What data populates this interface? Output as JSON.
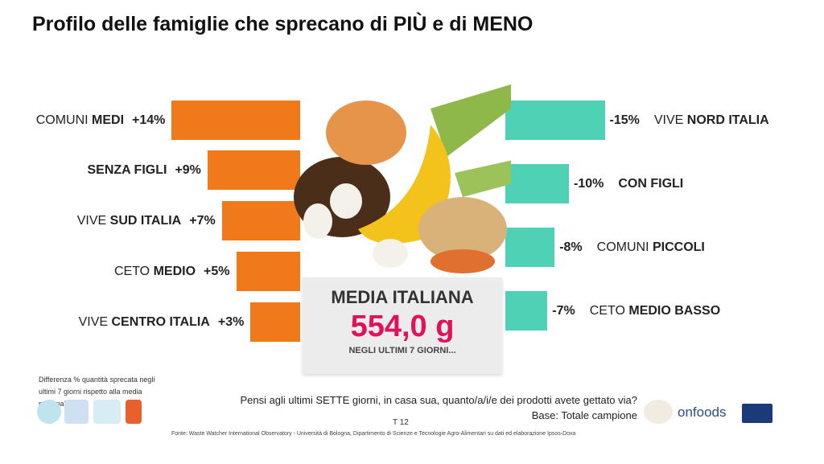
{
  "title": "Profilo delle famiglie che sprecano di PIÙ e di MENO",
  "colors": {
    "more": "#f07a1a",
    "less": "#4fd1b5",
    "accent": "#e0135a"
  },
  "chart_data": {
    "type": "bar",
    "title": "Profilo delle famiglie che sprecano di PIÙ e di MENO",
    "more": [
      {
        "pre": "COMUNI ",
        "bold": "MEDI",
        "value": 14,
        "label": "+14%"
      },
      {
        "pre": "",
        "bold": "SENZA FIGLI",
        "value": 9,
        "label": "+9%"
      },
      {
        "pre": "VIVE ",
        "bold": "SUD ITALIA",
        "value": 7,
        "label": "+7%"
      },
      {
        "pre": "CETO ",
        "bold": "MEDIO",
        "value": 5,
        "label": "+5%"
      },
      {
        "pre": "VIVE ",
        "bold": "CENTRO ITALIA",
        "value": 3,
        "label": "+3%"
      }
    ],
    "less": [
      {
        "pre": "VIVE ",
        "bold": "NORD ITALIA",
        "value": -15,
        "label": "-15%"
      },
      {
        "pre": "",
        "bold": "CON FIGLI",
        "value": -10,
        "label": "-10%"
      },
      {
        "pre": "COMUNI ",
        "bold": "PICCOLI",
        "value": -8,
        "label": "-8%"
      },
      {
        "pre": "CETO ",
        "bold": "MEDIO BASSO",
        "value": -7,
        "label": "-7%"
      }
    ]
  },
  "media": {
    "title": "MEDIA ITALIANA",
    "value": "554,0 g",
    "note": "NEGLI ULTIMI 7 GIORNI..."
  },
  "footnote": "Differenza % quantità sprecata negli ultimi 7 giorni rispetto alla media nazionale",
  "question": "Pensi agli ultimi SETTE giorni, in casa sua, quanto/a/i/e dei prodotti avete gettato via?",
  "base": "Base: Totale campione",
  "page": "T 12",
  "source": "Fonte: Waste Watcher International Observatory - Università di Bologna, Dipartimento di Scienze e Tecnologie Agro-Alimentari su dati ed elaborazione Ipsos-Doxa",
  "logo_text": "onfoods"
}
